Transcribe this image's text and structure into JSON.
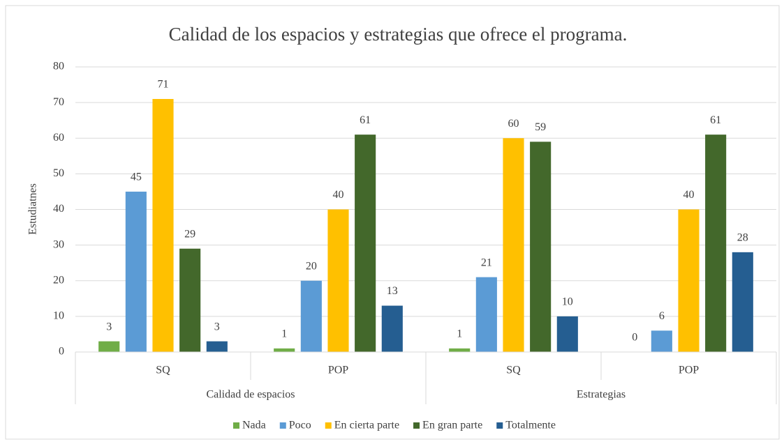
{
  "chart_data": {
    "type": "bar",
    "title": "Calidad de los espacios y estrategias que ofrece el programa.",
    "y_label": "Estudiatnes",
    "categories": [
      "SQ",
      "POP",
      "SQ",
      "POP"
    ],
    "groups": [
      "Calidad de espacios",
      "Estrategias"
    ],
    "series": [
      {
        "name": "Nada",
        "color": "#70ad47",
        "values": [
          3,
          1,
          1,
          0
        ]
      },
      {
        "name": "Poco",
        "color": "#5b9bd5",
        "values": [
          45,
          20,
          21,
          6
        ]
      },
      {
        "name": "En cierta parte",
        "color": "#ffc000",
        "values": [
          71,
          40,
          60,
          40
        ]
      },
      {
        "name": "En gran parte",
        "color": "#43682b",
        "values": [
          29,
          61,
          59,
          61
        ]
      },
      {
        "name": "Totalmente",
        "color": "#255e91",
        "values": [
          3,
          13,
          10,
          28
        ]
      }
    ],
    "ylim": [
      0,
      80
    ],
    "yticks": [
      0,
      10,
      20,
      30,
      40,
      50,
      60,
      70,
      80
    ],
    "grid": true,
    "legend": "bottom"
  }
}
